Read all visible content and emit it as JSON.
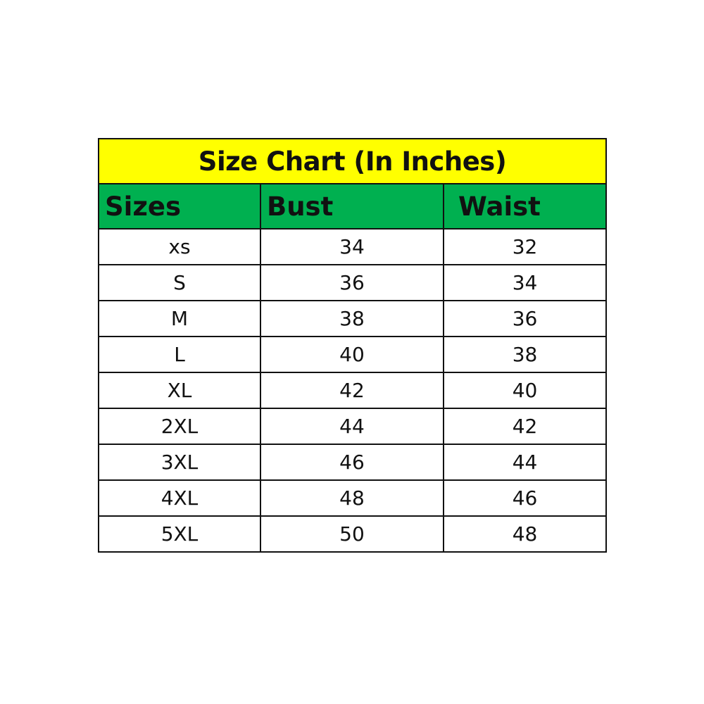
{
  "title": "Size Chart (In Inches)",
  "colors": {
    "title_bg": "#FFFF00",
    "header_bg": "#00B050"
  },
  "columns": [
    "Sizes",
    "Bust",
    "Waist"
  ],
  "rows": [
    [
      "xs",
      "34",
      "32"
    ],
    [
      "S",
      "36",
      "34"
    ],
    [
      "M",
      "38",
      "36"
    ],
    [
      "L",
      "40",
      "38"
    ],
    [
      "XL",
      "42",
      "40"
    ],
    [
      "2XL",
      "44",
      "42"
    ],
    [
      "3XL",
      "46",
      "44"
    ],
    [
      "4XL",
      "48",
      "46"
    ],
    [
      "5XL",
      "50",
      "48"
    ]
  ]
}
